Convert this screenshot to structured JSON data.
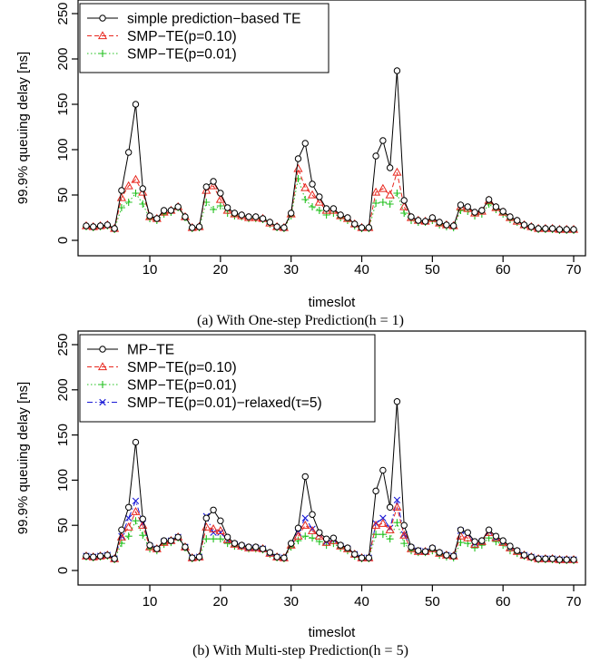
{
  "chart_data": [
    {
      "type": "line",
      "caption": "(a) With One-step Prediction(h = 1)",
      "xlabel": "timeslot",
      "ylabel": "99.9% queuing delay [ns]",
      "xlim": [
        1,
        70
      ],
      "ylim": [
        0,
        250
      ],
      "xticks": [
        "10",
        "20",
        "30",
        "40",
        "50",
        "60",
        "70"
      ],
      "xtick_values": [
        10,
        20,
        30,
        40,
        50,
        60,
        70
      ],
      "yticks": [
        "0",
        "50",
        "100",
        "150",
        "200",
        "250"
      ],
      "ytick_values": [
        0,
        50,
        100,
        150,
        200,
        250
      ],
      "x": [
        1,
        2,
        3,
        4,
        5,
        6,
        7,
        8,
        9,
        10,
        11,
        12,
        13,
        14,
        15,
        16,
        17,
        18,
        19,
        20,
        21,
        22,
        23,
        24,
        25,
        26,
        27,
        28,
        29,
        30,
        31,
        32,
        33,
        34,
        35,
        36,
        37,
        38,
        39,
        40,
        41,
        42,
        43,
        44,
        45,
        46,
        47,
        48,
        49,
        50,
        51,
        52,
        53,
        54,
        55,
        56,
        57,
        58,
        59,
        60,
        61,
        62,
        63,
        64,
        65,
        66,
        67,
        68,
        69,
        70
      ],
      "legend": {
        "position": "top-left"
      },
      "series": [
        {
          "name": "simple prediction−based TE",
          "color": "#000000",
          "marker": "circle",
          "dash": "solid",
          "values": [
            16,
            15,
            16,
            17,
            13,
            55,
            97,
            150,
            57,
            27,
            24,
            33,
            33,
            37,
            26,
            14,
            15,
            59,
            65,
            52,
            36,
            30,
            28,
            26,
            26,
            24,
            20,
            15,
            14,
            30,
            90,
            107,
            62,
            48,
            35,
            35,
            28,
            25,
            18,
            14,
            14,
            93,
            110,
            80,
            187,
            44,
            26,
            22,
            21,
            25,
            20,
            17,
            16,
            39,
            37,
            31,
            33,
            45,
            37,
            32,
            26,
            22,
            17,
            15,
            13,
            13,
            13,
            12,
            12,
            12
          ],
          "style_colors": {
            "line": "#000000"
          }
        },
        {
          "name": "SMP−TE(p=0.10)",
          "color": "#e8271e",
          "marker": "triangle",
          "dash": "dashed",
          "values": [
            16,
            15,
            16,
            17,
            13,
            47,
            60,
            67,
            53,
            26,
            24,
            31,
            33,
            37,
            26,
            14,
            15,
            55,
            60,
            45,
            33,
            29,
            27,
            25,
            25,
            24,
            19,
            15,
            14,
            29,
            79,
            58,
            50,
            42,
            33,
            33,
            27,
            24,
            18,
            14,
            14,
            53,
            57,
            50,
            75,
            37,
            25,
            22,
            21,
            24,
            19,
            17,
            16,
            37,
            35,
            30,
            32,
            44,
            36,
            31,
            25,
            21,
            17,
            15,
            13,
            13,
            13,
            12,
            12,
            12
          ]
        },
        {
          "name": "SMP−TE(p=0.01)",
          "color": "#22c01e",
          "marker": "plus",
          "dash": "dotted",
          "values": [
            15,
            14,
            15,
            16,
            12,
            36,
            42,
            52,
            40,
            24,
            22,
            29,
            31,
            36,
            25,
            13,
            14,
            42,
            34,
            38,
            30,
            27,
            26,
            24,
            24,
            23,
            18,
            14,
            13,
            27,
            68,
            45,
            37,
            33,
            28,
            30,
            25,
            22,
            16,
            13,
            13,
            41,
            42,
            40,
            52,
            30,
            22,
            20,
            20,
            22,
            17,
            15,
            14,
            33,
            32,
            27,
            29,
            40,
            34,
            29,
            23,
            20,
            16,
            14,
            12,
            12,
            12,
            11,
            11,
            11
          ]
        }
      ]
    },
    {
      "type": "line",
      "caption": "(b) With Multi-step Prediction(h = 5)",
      "xlabel": "timeslot",
      "ylabel": "99.9% queuing delay [ns]",
      "xlim": [
        1,
        70
      ],
      "ylim": [
        0,
        250
      ],
      "xticks": [
        "10",
        "20",
        "30",
        "40",
        "50",
        "60",
        "70"
      ],
      "xtick_values": [
        10,
        20,
        30,
        40,
        50,
        60,
        70
      ],
      "yticks": [
        "0",
        "50",
        "100",
        "150",
        "200",
        "250"
      ],
      "ytick_values": [
        0,
        50,
        100,
        150,
        200,
        250
      ],
      "x": [
        1,
        2,
        3,
        4,
        5,
        6,
        7,
        8,
        9,
        10,
        11,
        12,
        13,
        14,
        15,
        16,
        17,
        18,
        19,
        20,
        21,
        22,
        23,
        24,
        25,
        26,
        27,
        28,
        29,
        30,
        31,
        32,
        33,
        34,
        35,
        36,
        37,
        38,
        39,
        40,
        41,
        42,
        43,
        44,
        45,
        46,
        47,
        48,
        49,
        50,
        51,
        52,
        53,
        54,
        55,
        56,
        57,
        58,
        59,
        60,
        61,
        62,
        63,
        64,
        65,
        66,
        67,
        68,
        69,
        70
      ],
      "legend": {
        "position": "top-left"
      },
      "series": [
        {
          "name": "MP−TE",
          "color": "#000000",
          "marker": "circle",
          "dash": "solid",
          "values": [
            16,
            15,
            16,
            17,
            13,
            45,
            70,
            142,
            57,
            28,
            24,
            33,
            33,
            37,
            26,
            14,
            15,
            58,
            67,
            55,
            37,
            30,
            28,
            26,
            26,
            24,
            20,
            15,
            14,
            30,
            47,
            104,
            62,
            42,
            35,
            36,
            28,
            25,
            18,
            14,
            14,
            88,
            111,
            70,
            187,
            50,
            26,
            22,
            21,
            25,
            20,
            17,
            16,
            45,
            42,
            32,
            33,
            45,
            38,
            33,
            27,
            22,
            17,
            15,
            13,
            13,
            13,
            12,
            12,
            12
          ]
        },
        {
          "name": "SMP−TE(p=0.10)",
          "color": "#e8271e",
          "marker": "triangle",
          "dash": "dashed",
          "values": [
            16,
            15,
            16,
            17,
            13,
            37,
            48,
            65,
            50,
            26,
            24,
            31,
            33,
            37,
            26,
            14,
            15,
            48,
            46,
            44,
            34,
            29,
            27,
            25,
            25,
            24,
            19,
            15,
            14,
            28,
            38,
            50,
            44,
            38,
            31,
            33,
            27,
            24,
            18,
            14,
            14,
            50,
            52,
            45,
            70,
            39,
            24,
            21,
            21,
            24,
            19,
            17,
            16,
            38,
            36,
            29,
            32,
            42,
            36,
            31,
            25,
            21,
            17,
            15,
            13,
            13,
            13,
            12,
            12,
            12
          ]
        },
        {
          "name": "SMP−TE(p=0.01)",
          "color": "#22c01e",
          "marker": "plus",
          "dash": "dotted",
          "values": [
            15,
            14,
            15,
            16,
            12,
            30,
            38,
            55,
            39,
            24,
            22,
            29,
            31,
            36,
            25,
            13,
            14,
            35,
            35,
            35,
            30,
            27,
            26,
            24,
            24,
            23,
            18,
            14,
            13,
            26,
            33,
            38,
            36,
            32,
            28,
            30,
            25,
            22,
            16,
            13,
            13,
            40,
            40,
            35,
            53,
            30,
            22,
            20,
            20,
            22,
            17,
            15,
            14,
            31,
            30,
            25,
            28,
            36,
            32,
            28,
            22,
            19,
            16,
            14,
            12,
            12,
            12,
            11,
            11,
            11
          ]
        },
        {
          "name": "SMP−TE(p=0.01)−relaxed(τ=5)",
          "color": "#1a1ad6",
          "marker": "cross",
          "dash": "dashdot",
          "values": [
            16,
            15,
            16,
            17,
            13,
            38,
            58,
            77,
            52,
            27,
            24,
            32,
            33,
            37,
            26,
            14,
            15,
            60,
            42,
            42,
            33,
            29,
            27,
            25,
            25,
            24,
            19,
            15,
            14,
            28,
            42,
            58,
            46,
            40,
            32,
            34,
            27,
            24,
            18,
            14,
            14,
            52,
            58,
            47,
            78,
            40,
            25,
            22,
            21,
            24,
            19,
            17,
            16,
            44,
            40,
            30,
            32,
            43,
            36,
            31,
            25,
            21,
            17,
            15,
            13,
            13,
            13,
            12,
            12,
            12
          ]
        }
      ]
    }
  ]
}
